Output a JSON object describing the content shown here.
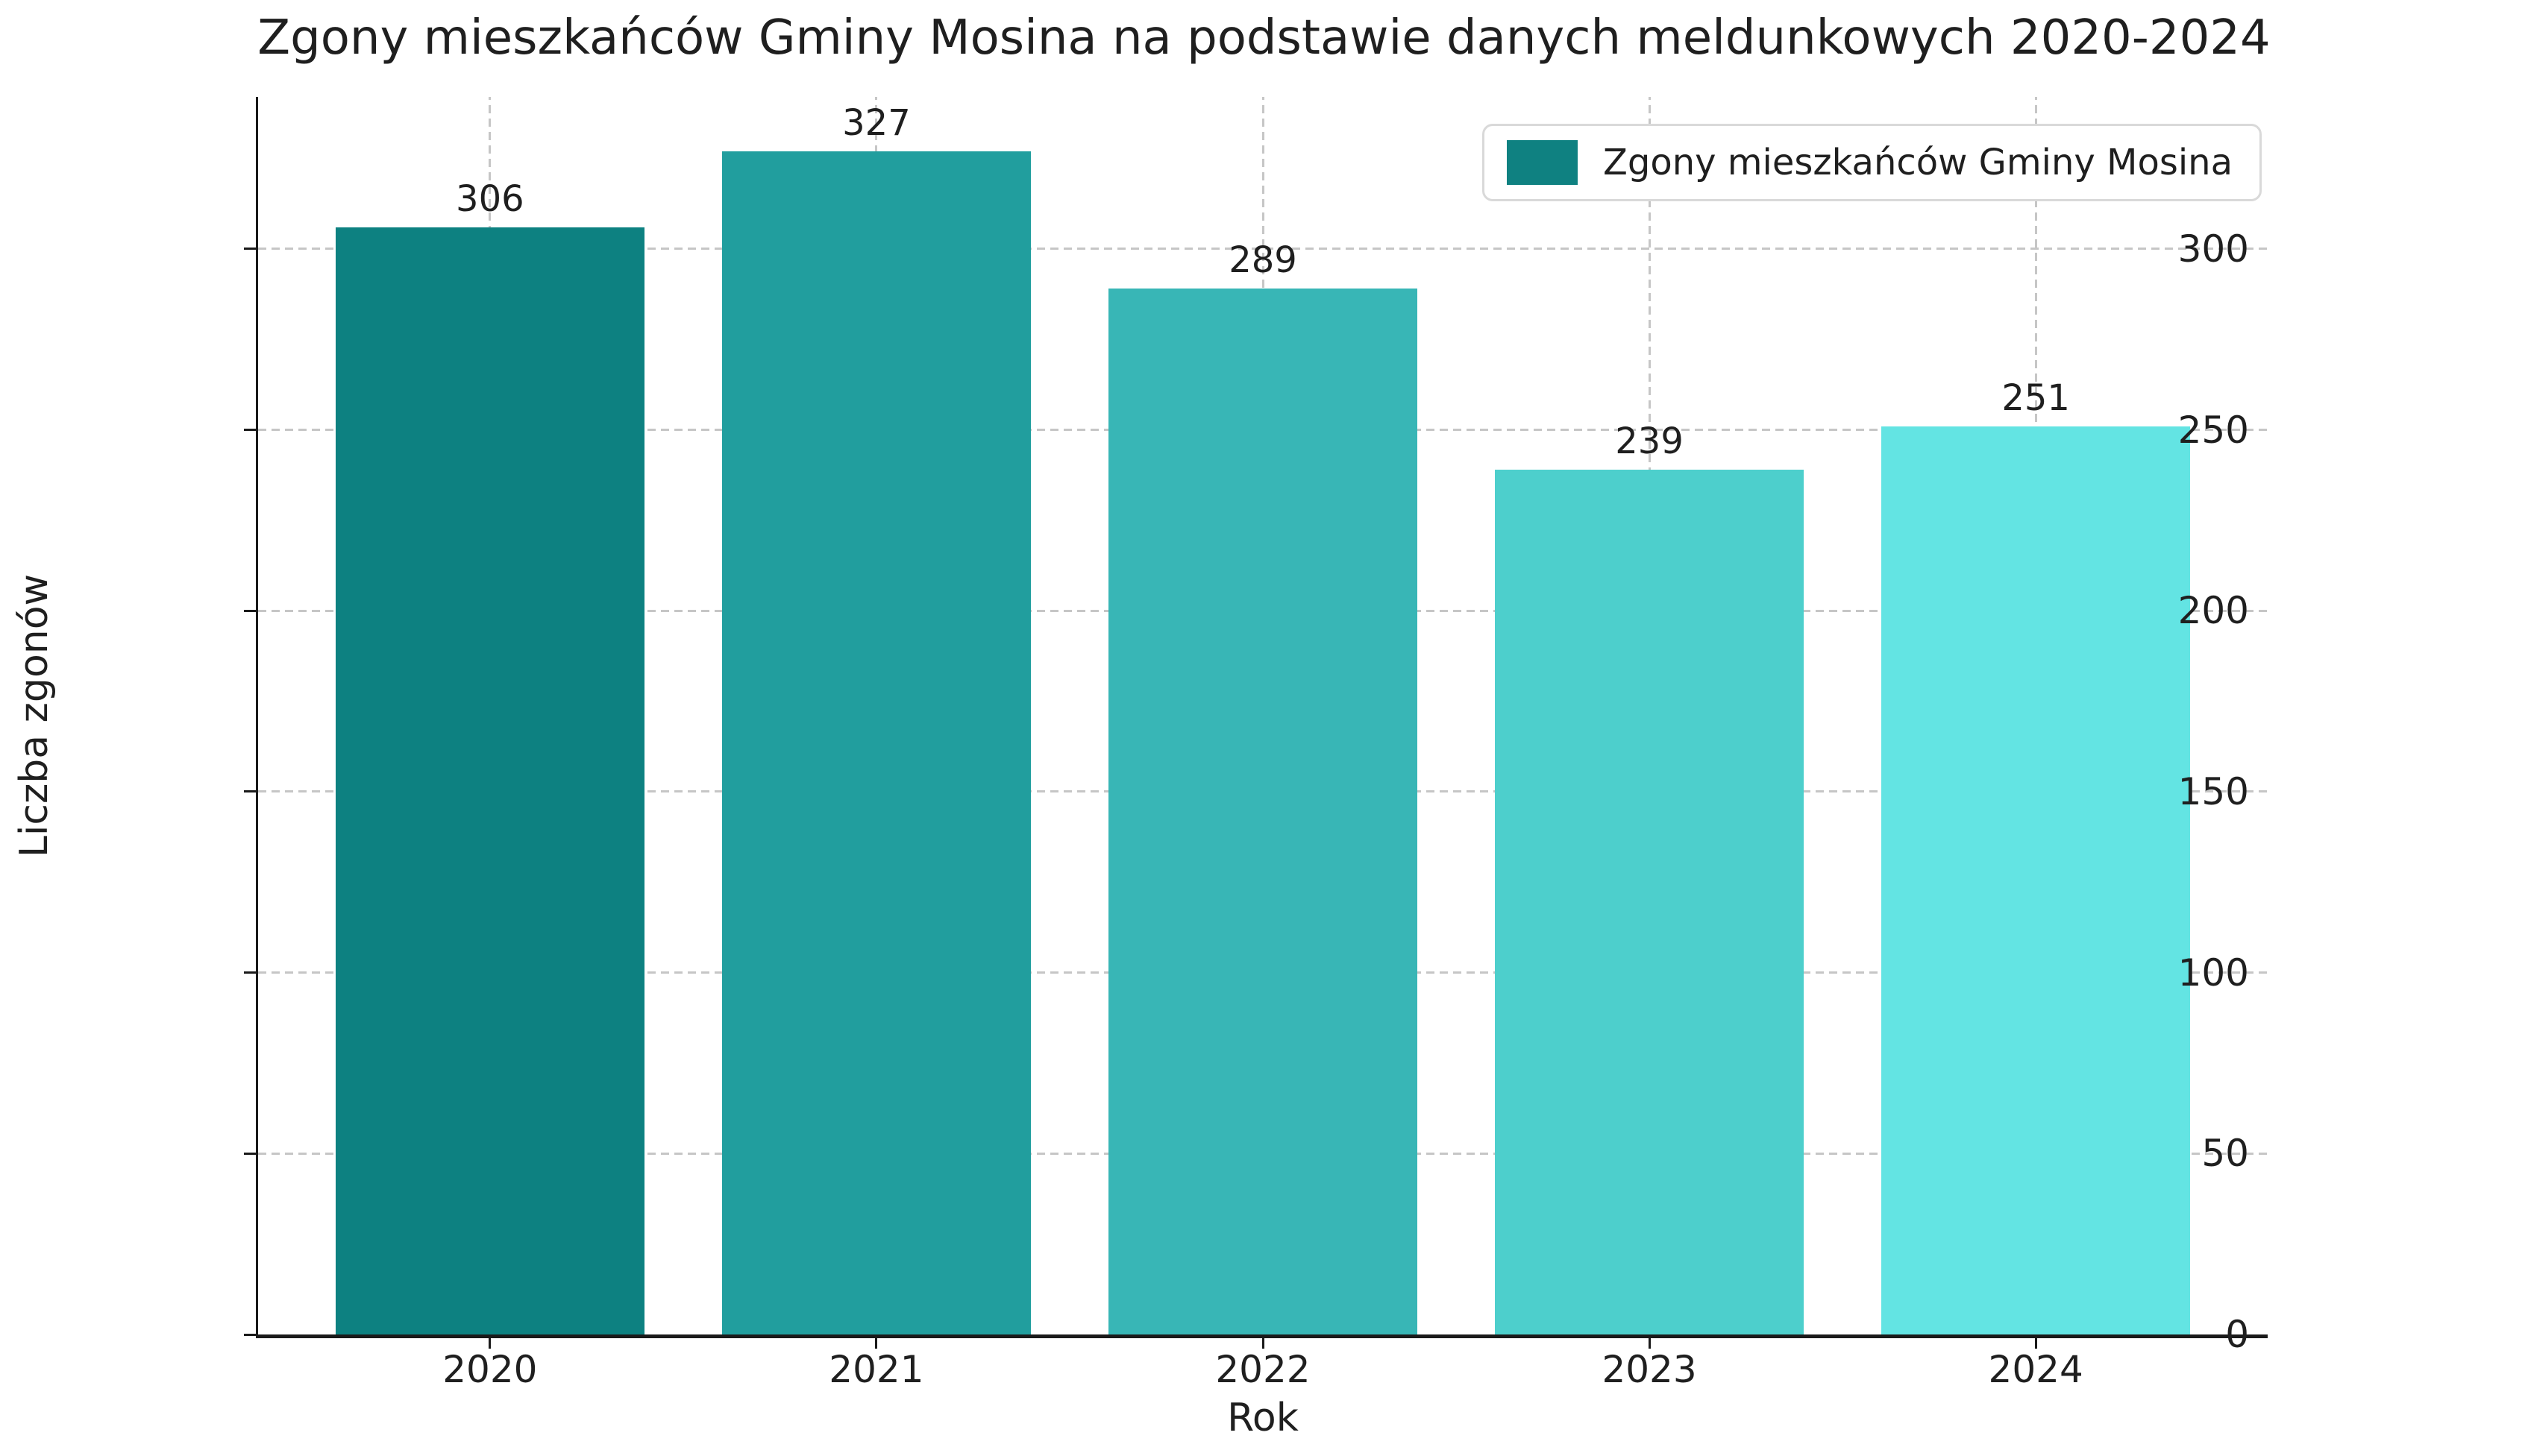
{
  "chart_data": {
    "type": "bar",
    "title": "Zgony mieszkańców Gminy Mosina na podstawie danych meldunkowych 2020-2024",
    "xlabel": "Rok",
    "ylabel": "Liczba zgonów",
    "categories": [
      "2020",
      "2021",
      "2022",
      "2023",
      "2024"
    ],
    "values": [
      306,
      327,
      289,
      239,
      251
    ],
    "value_labels": [
      "306",
      "327",
      "289",
      "239",
      "251"
    ],
    "bar_colors": [
      "#0d8181",
      "#219e9e",
      "#38b6b6",
      "#4dcfcc",
      "#63e4e3"
    ],
    "ylim": [
      0,
      342
    ],
    "yticks": [
      0,
      50,
      100,
      150,
      200,
      250,
      300
    ],
    "grid": "dashed-both-axes",
    "grid_color": "#c6c6c6",
    "legend": {
      "position": "upper-right",
      "entries": [
        {
          "label": "Zgony mieszkańców Gminy Mosina",
          "color": "#0f8181"
        }
      ]
    }
  }
}
